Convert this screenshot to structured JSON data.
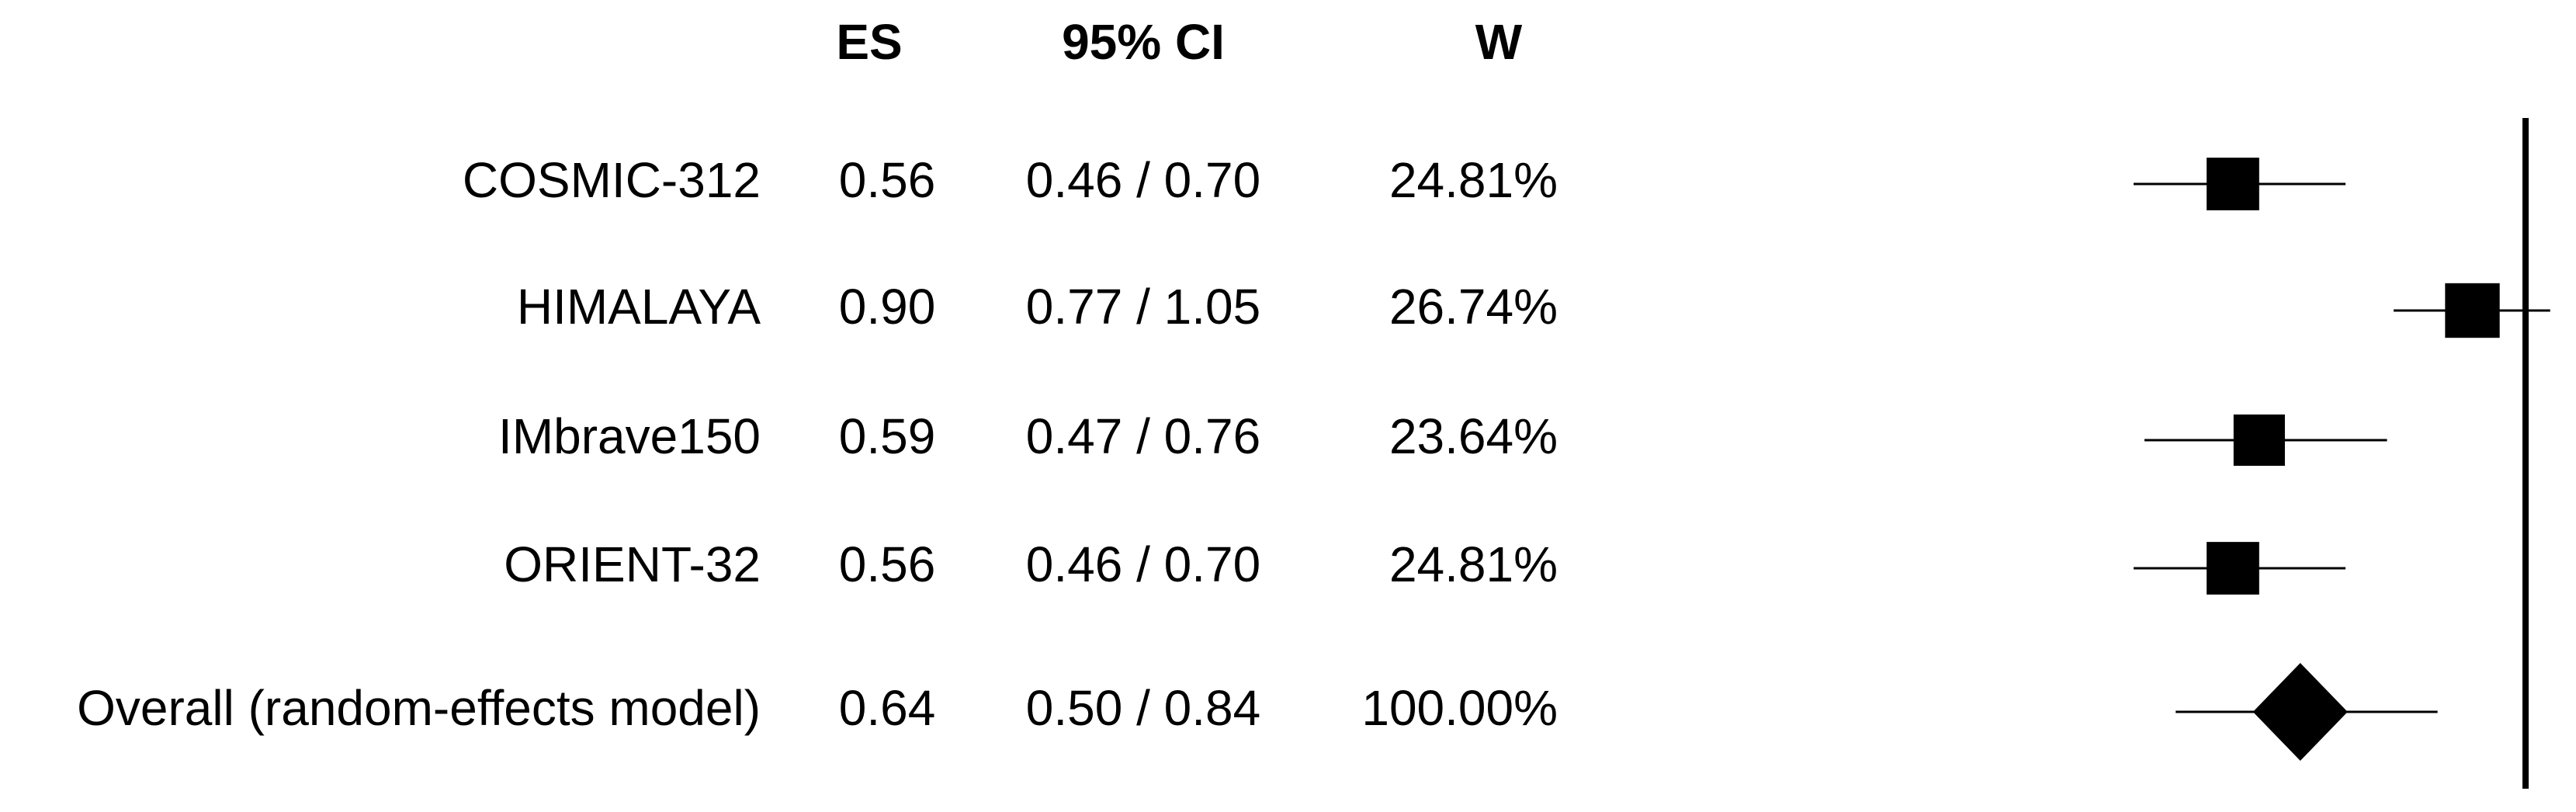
{
  "chart_data": {
    "type": "forest",
    "headers": {
      "es": "ES",
      "ci": "95% CI",
      "w": "W"
    },
    "studies": {
      "categories": [
        "COSMIC-312",
        "HIMALAYA",
        "IMbrave150",
        "ORIENT-32"
      ],
      "values": [
        0.56,
        0.9,
        0.59,
        0.56
      ],
      "value_labels": [
        "0.56",
        "0.90",
        "0.59",
        "0.56"
      ],
      "ci_low": [
        0.46,
        0.77,
        0.47,
        0.46
      ],
      "ci_high": [
        0.7,
        1.05,
        0.76,
        0.7
      ],
      "ci_labels": [
        "0.46 / 0.70",
        "0.77 / 1.05",
        "0.47 / 0.76",
        "0.46 / 0.70"
      ],
      "weights": [
        24.81,
        26.74,
        23.64,
        24.81
      ],
      "weight_labels": [
        "24.81%",
        "26.74%",
        "23.64%",
        "24.81%"
      ]
    },
    "overall": {
      "name": "Overall (random-effects model)",
      "value": 0.64,
      "value_label": "0.64",
      "ci_low": 0.5,
      "ci_high": 0.84,
      "ci_label": "0.50 / 0.84",
      "weight": 100,
      "weight_label": "100.00%"
    },
    "log_scale": true,
    "xlim": [
      0.33,
      1.1
    ],
    "reference_line": 1,
    "color": "#000000"
  }
}
